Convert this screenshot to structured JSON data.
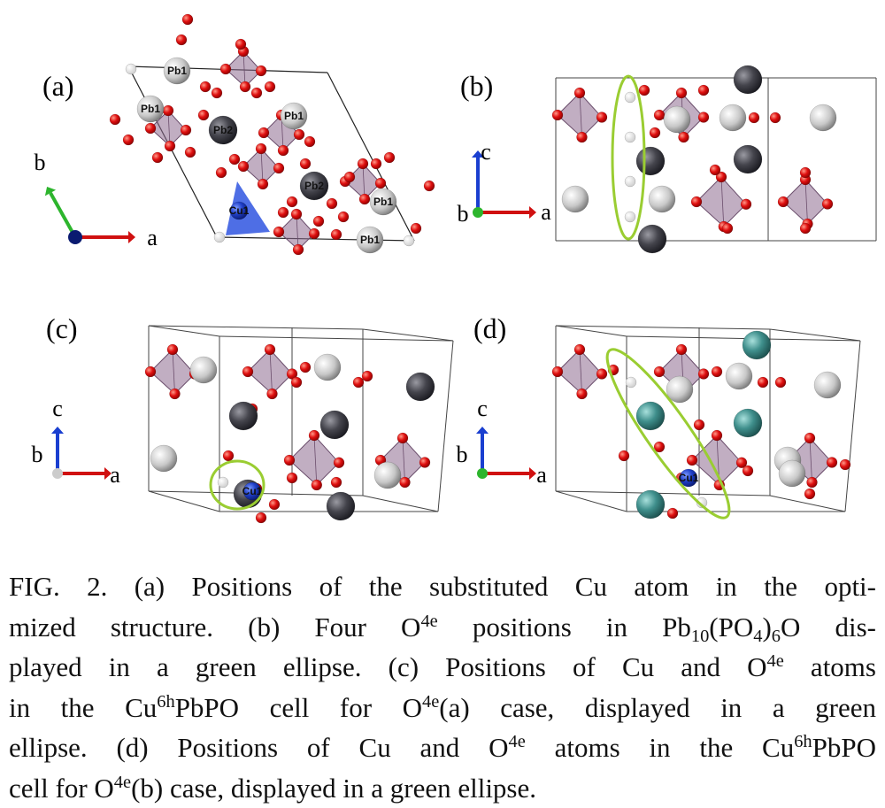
{
  "panels": [
    {
      "label": "(a)",
      "atom_labels": [
        "Pb1",
        "Pb1",
        "Pb1",
        "Pb1",
        "Pb1",
        "Pb2",
        "Pb2",
        "Cu1"
      ],
      "axes": [
        "b",
        "a"
      ]
    },
    {
      "label": "(b)",
      "axes": [
        "c",
        "b",
        "a"
      ]
    },
    {
      "label": "(c)",
      "atom_labels": [
        "Cu1"
      ],
      "axes": [
        "c",
        "b",
        "a"
      ]
    },
    {
      "label": "(d)",
      "atom_labels": [
        "Cu1"
      ],
      "axes": [
        "c",
        "b",
        "a"
      ]
    }
  ],
  "caption": {
    "lines": [
      [
        {
          "text": "FIG. 2. (a) Positions of the substituted Cu atom in the opti-"
        }
      ],
      [
        {
          "text": "mized structure. (b) Four O"
        },
        {
          "text": "4e",
          "pos": "sup"
        },
        {
          "text": " positions in Pb"
        },
        {
          "text": "10",
          "pos": "sub"
        },
        {
          "text": "(PO"
        },
        {
          "text": "4",
          "pos": "sub"
        },
        {
          "text": ")"
        },
        {
          "text": "6",
          "pos": "sub"
        },
        {
          "text": "O dis-"
        }
      ],
      [
        {
          "text": "played in a green ellipse. (c) Positions of Cu and O"
        },
        {
          "text": "4e",
          "pos": "sup"
        },
        {
          "text": " atoms"
        }
      ],
      [
        {
          "text": "in the Cu"
        },
        {
          "text": "6h",
          "pos": "sup"
        },
        {
          "text": "PbPO cell for O"
        },
        {
          "text": "4e",
          "pos": "sup"
        },
        {
          "text": "(a) case, displayed in a green"
        }
      ],
      [
        {
          "text": "ellipse. (d) Positions of Cu and O"
        },
        {
          "text": "4e",
          "pos": "sup"
        },
        {
          "text": " atoms in the Cu"
        },
        {
          "text": "6h",
          "pos": "sup"
        },
        {
          "text": "PbPO"
        }
      ],
      [
        {
          "text": "cell for O"
        },
        {
          "text": "4e",
          "pos": "sup"
        },
        {
          "text": "(b) case, displayed in a green ellipse."
        }
      ]
    ]
  }
}
